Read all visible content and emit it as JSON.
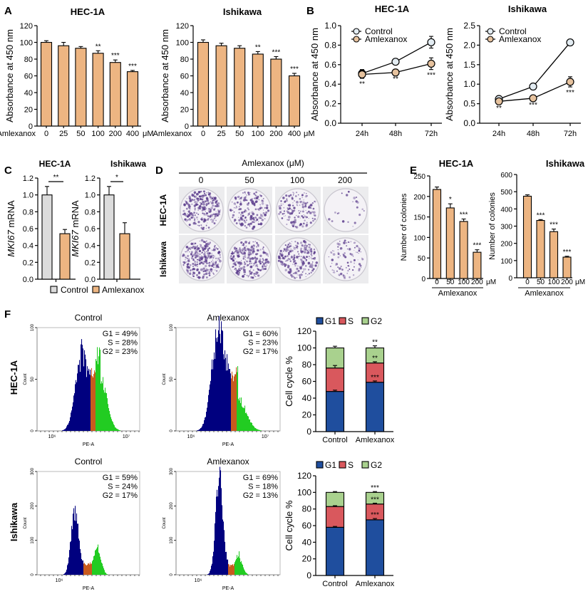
{
  "panel_labels": [
    "A",
    "B",
    "C",
    "D",
    "E",
    "F"
  ],
  "colors": {
    "bar": "#EDB582",
    "control_bar": "#DCDCDC",
    "control_point": "#E3ECF2",
    "amlexanox_point": "#E6C29E",
    "G1": "#1F4E9E",
    "S": "#D9585D",
    "G2": "#A9D18E",
    "hist_G1": "#00007F",
    "hist_S": "#C85A1E",
    "hist_G2": "#22CC22",
    "stain": "#5B3C8C"
  },
  "chart_data": [
    {
      "panel": "A",
      "type": "bar",
      "title": "HEC-1A",
      "ylabel": "Absorbance at 450 nm",
      "xlabel_prefix": "Amlexanox",
      "xunit": "μM",
      "categories": [
        "0",
        "25",
        "50",
        "100",
        "200",
        "400"
      ],
      "values": [
        100,
        96,
        93,
        87,
        76,
        65
      ],
      "errors": [
        2,
        4,
        2,
        3,
        3,
        1.5
      ],
      "significance": [
        "",
        "",
        "",
        "**",
        "***",
        "***"
      ],
      "ylim": [
        0,
        120
      ],
      "yticks": [
        "0",
        "20",
        "40",
        "60",
        "80",
        "100",
        "120"
      ]
    },
    {
      "panel": "A",
      "type": "bar",
      "title": "Ishikawa",
      "ylabel": "Absorbance at 450 nm",
      "xlabel_prefix": "Amlexanox",
      "xunit": "μM",
      "categories": [
        "0",
        "25",
        "50",
        "100",
        "200",
        "400"
      ],
      "values": [
        100,
        96,
        93,
        86,
        80,
        60
      ],
      "errors": [
        3,
        3,
        3,
        3,
        3,
        3
      ],
      "significance": [
        "",
        "",
        "",
        "**",
        "***",
        "***"
      ],
      "ylim": [
        0,
        120
      ],
      "yticks": [
        "0",
        "20",
        "40",
        "60",
        "80",
        "100",
        "120"
      ]
    },
    {
      "panel": "B",
      "type": "line",
      "title": "HEC-1A",
      "ylabel": "Absorbance at 450 nm",
      "x": [
        "24h",
        "48h",
        "72h"
      ],
      "series": [
        {
          "name": "Control",
          "values": [
            0.51,
            0.63,
            0.83
          ],
          "errors": [
            0.04,
            0.01,
            0.06
          ]
        },
        {
          "name": "Amlexanox",
          "values": [
            0.5,
            0.52,
            0.61
          ],
          "errors": [
            0.04,
            0.01,
            0.06
          ]
        }
      ],
      "significance": [
        "**",
        "**",
        "***"
      ],
      "ylim": [
        0,
        1.0
      ],
      "yticks": [
        "0.0",
        "0.2",
        "0.4",
        "0.6",
        "0.8",
        "1.0"
      ],
      "legend": "top-left"
    },
    {
      "panel": "B",
      "type": "line",
      "title": "Ishikawa",
      "ylabel": "Absorbance at 450 nm",
      "x": [
        "24h",
        "48h",
        "72h"
      ],
      "series": [
        {
          "name": "Control",
          "values": [
            0.62,
            0.94,
            2.07
          ],
          "errors": [
            0.04,
            0.06,
            0.07
          ]
        },
        {
          "name": "Amlexanox",
          "values": [
            0.56,
            0.64,
            1.06
          ],
          "errors": [
            0.03,
            0.03,
            0.13
          ]
        }
      ],
      "significance": [
        "**",
        "***",
        "***"
      ],
      "ylim": [
        0,
        2.5
      ],
      "yticks": [
        "0.0",
        "0.5",
        "1.0",
        "1.5",
        "2.0",
        "2.5"
      ],
      "legend": "top-left"
    },
    {
      "panel": "C",
      "type": "bar",
      "title": "HEC-1A",
      "ylabel_gene": "MKI67",
      "ylabel_suffix": " mRNA",
      "categories": [
        "Control",
        "Amlexanox"
      ],
      "values": [
        1.0,
        0.54
      ],
      "errors": [
        0.1,
        0.05
      ],
      "significance": "**",
      "ylim": [
        0,
        1.2
      ],
      "yticks": [
        "0.0",
        "0.2",
        "0.4",
        "0.6",
        "0.8",
        "1.0",
        "1.2"
      ]
    },
    {
      "panel": "C",
      "type": "bar",
      "title": "Ishikawa",
      "ylabel_gene": "MKI67",
      "ylabel_suffix": " mRNA",
      "categories": [
        "Control",
        "Amlexanox"
      ],
      "values": [
        1.0,
        0.54
      ],
      "errors": [
        0.1,
        0.13
      ],
      "significance": "*",
      "ylim": [
        0,
        1.2
      ],
      "yticks": [
        "0.0",
        "0.2",
        "0.4",
        "0.6",
        "0.8",
        "1.0",
        "1.2"
      ]
    },
    {
      "panel": "E",
      "type": "bar",
      "title": "HEC-1A",
      "ylabel": "Number of colonies",
      "xlabel": "Amlexanox",
      "xunit": "μM",
      "categories": [
        "0",
        "50",
        "100",
        "200"
      ],
      "values": [
        217,
        172,
        139,
        64
      ],
      "errors": [
        6,
        10,
        6,
        6
      ],
      "significance": [
        "",
        "*",
        "***",
        "***"
      ],
      "ylim": [
        0,
        250
      ],
      "yticks": [
        "0",
        "50",
        "100",
        "150",
        "200",
        "250"
      ]
    },
    {
      "panel": "E",
      "type": "bar",
      "title": "Ishikawa",
      "ylabel": "Number of colonies",
      "xlabel": "Amlexanox",
      "xunit": "μM",
      "categories": [
        "0",
        "50",
        "100",
        "200"
      ],
      "values": [
        474,
        333,
        268,
        120
      ],
      "errors": [
        8,
        5,
        15,
        5
      ],
      "significance": [
        "",
        "***",
        "***",
        "***"
      ],
      "ylim": [
        0,
        600
      ],
      "yticks": [
        "0",
        "100",
        "200",
        "300",
        "400",
        "500",
        "600"
      ]
    },
    {
      "panel": "F",
      "type": "bar",
      "stacked": true,
      "row": "HEC-1A",
      "ylabel": "Cell cycle %",
      "categories": [
        "Control",
        "Amlexanox"
      ],
      "series": [
        {
          "name": "G1",
          "values": [
            48,
            59
          ],
          "errors": [
            1.5,
            1.5
          ],
          "significance": [
            "",
            "***"
          ]
        },
        {
          "name": "S",
          "values": [
            28,
            23
          ],
          "errors": [
            3,
            1.5
          ],
          "significance": [
            "",
            "**"
          ]
        },
        {
          "name": "G2",
          "values": [
            24,
            18
          ],
          "errors": [
            2,
            2.5
          ],
          "significance": [
            "",
            "**"
          ]
        }
      ],
      "ylim": [
        0,
        120
      ],
      "yticks": [
        "0",
        "20",
        "40",
        "60",
        "80",
        "100",
        "120"
      ],
      "legend": "top"
    },
    {
      "panel": "F",
      "type": "bar",
      "stacked": true,
      "row": "Ishikawa",
      "ylabel": "Cell cycle %",
      "categories": [
        "Control",
        "Amlexanox"
      ],
      "series": [
        {
          "name": "G1",
          "values": [
            58,
            67
          ],
          "errors": [
            1,
            1.5
          ],
          "significance": [
            "",
            "***"
          ]
        },
        {
          "name": "S",
          "values": [
            25,
            19
          ],
          "errors": [
            1,
            1
          ],
          "significance": [
            "",
            "***"
          ]
        },
        {
          "name": "G2",
          "values": [
            17,
            14
          ],
          "errors": [
            1,
            1
          ],
          "significance": [
            "",
            "***"
          ]
        }
      ],
      "ylim": [
        0,
        120
      ],
      "yticks": [
        "0",
        "20",
        "40",
        "60",
        "80",
        "100",
        "120"
      ],
      "legend": "top"
    }
  ],
  "legend_C": {
    "items": [
      "Control",
      "Amlexanox"
    ]
  },
  "colony_assay": {
    "title": "Amlexanox (μM)",
    "concentrations": [
      "0",
      "50",
      "100",
      "200"
    ],
    "rows": [
      "HEC-1A",
      "Ishikawa"
    ]
  },
  "flow_histograms": {
    "xlabel": "PE-A",
    "ylabel": "Count",
    "xticks": [
      "10⁶",
      "10⁷"
    ],
    "rows": [
      {
        "label": "HEC-1A",
        "yticks": [
          "0",
          "50",
          "100"
        ],
        "plots": [
          {
            "title": "Control",
            "stats": [
              "G1 = 49%",
              "S = 28%",
              "G2 = 23%"
            ],
            "xticks": [
              "10⁶",
              "10⁷"
            ]
          },
          {
            "title": "Amlexanox",
            "stats": [
              "G1 = 60%",
              "S = 23%",
              "G2 = 17%"
            ],
            "xticks": [
              "10⁶",
              "10⁷"
            ]
          }
        ]
      },
      {
        "label": "Ishikawa",
        "yticks": [
          "0",
          "100",
          "200",
          "300"
        ],
        "plots": [
          {
            "title": "Control",
            "stats": [
              "G1 = 59%",
              "S = 24%",
              "G2 = 17%"
            ],
            "xticks": [
              "10⁶"
            ]
          },
          {
            "title": "Amlexanox",
            "stats": [
              "G1 = 69%",
              "S = 18%",
              "G2 = 13%"
            ],
            "xticks": [
              "10⁶"
            ]
          }
        ]
      }
    ]
  }
}
